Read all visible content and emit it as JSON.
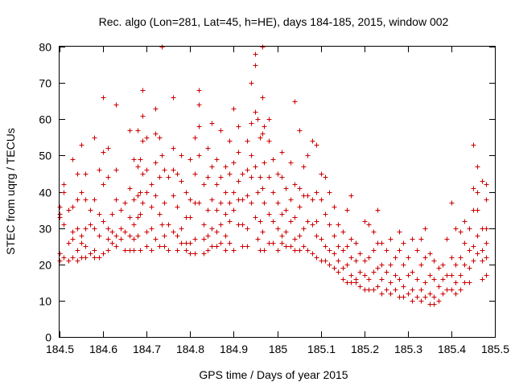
{
  "chart_data": {
    "type": "scatter",
    "title": "Rec. algo (Lon=281, Lat=45, h=HE), days 184-185, 2015, window 002",
    "xlabel": "GPS time / Days of year 2015",
    "ylabel": "STEC from uqrg / TECUs",
    "xlim": [
      184.5,
      185.5
    ],
    "ylim": [
      0,
      80
    ],
    "xticks": [
      "184.5",
      "184.6",
      "184.7",
      "184.8",
      "184.9",
      "185",
      "185.1",
      "185.2",
      "185.3",
      "185.4",
      "185.5"
    ],
    "yticks": [
      "0",
      "10",
      "20",
      "30",
      "40",
      "50",
      "60",
      "70",
      "80"
    ],
    "grid": false,
    "legend": "none",
    "marker": "plus",
    "series_color": "#cc0000",
    "points": [
      [
        184.5,
        36
      ],
      [
        184.5,
        34
      ],
      [
        184.5,
        33
      ],
      [
        184.5,
        23
      ],
      [
        184.5,
        21
      ],
      [
        184.51,
        42
      ],
      [
        184.51,
        40
      ],
      [
        184.51,
        31
      ],
      [
        184.51,
        22
      ],
      [
        184.52,
        35
      ],
      [
        184.52,
        26
      ],
      [
        184.52,
        21
      ],
      [
        184.53,
        49
      ],
      [
        184.53,
        36
      ],
      [
        184.53,
        29
      ],
      [
        184.53,
        27
      ],
      [
        184.53,
        22
      ],
      [
        184.54,
        45
      ],
      [
        184.54,
        38
      ],
      [
        184.54,
        30
      ],
      [
        184.54,
        24
      ],
      [
        184.54,
        21
      ],
      [
        184.55,
        53
      ],
      [
        184.55,
        40
      ],
      [
        184.55,
        28
      ],
      [
        184.55,
        26
      ],
      [
        184.55,
        22
      ],
      [
        184.56,
        45
      ],
      [
        184.56,
        38
      ],
      [
        184.56,
        30
      ],
      [
        184.56,
        25
      ],
      [
        184.56,
        22
      ],
      [
        184.57,
        35
      ],
      [
        184.57,
        31
      ],
      [
        184.57,
        23
      ],
      [
        184.58,
        55
      ],
      [
        184.58,
        38
      ],
      [
        184.58,
        30
      ],
      [
        184.58,
        24
      ],
      [
        184.58,
        22
      ],
      [
        184.59,
        46
      ],
      [
        184.59,
        34
      ],
      [
        184.59,
        28
      ],
      [
        184.59,
        22
      ],
      [
        184.6,
        66
      ],
      [
        184.6,
        51
      ],
      [
        184.6,
        42
      ],
      [
        184.6,
        32
      ],
      [
        184.6,
        23
      ],
      [
        184.61,
        52
      ],
      [
        184.61,
        44
      ],
      [
        184.61,
        30
      ],
      [
        184.61,
        27
      ],
      [
        184.61,
        24
      ],
      [
        184.62,
        34
      ],
      [
        184.62,
        29
      ],
      [
        184.62,
        26
      ],
      [
        184.63,
        64
      ],
      [
        184.63,
        46
      ],
      [
        184.63,
        38
      ],
      [
        184.63,
        28
      ],
      [
        184.63,
        25
      ],
      [
        184.64,
        35
      ],
      [
        184.64,
        30
      ],
      [
        184.64,
        27
      ],
      [
        184.65,
        37
      ],
      [
        184.65,
        29
      ],
      [
        184.65,
        24
      ],
      [
        184.66,
        57
      ],
      [
        184.66,
        41
      ],
      [
        184.66,
        33
      ],
      [
        184.66,
        28
      ],
      [
        184.66,
        24
      ],
      [
        184.67,
        49
      ],
      [
        184.67,
        38
      ],
      [
        184.67,
        31
      ],
      [
        184.67,
        27
      ],
      [
        184.67,
        24
      ],
      [
        184.68,
        57
      ],
      [
        184.68,
        47
      ],
      [
        184.68,
        39
      ],
      [
        184.68,
        33
      ],
      [
        184.68,
        28
      ],
      [
        184.685,
        49
      ],
      [
        184.685,
        40
      ],
      [
        184.685,
        34
      ],
      [
        184.685,
        24
      ],
      [
        184.69,
        68
      ],
      [
        184.69,
        61
      ],
      [
        184.69,
        54
      ],
      [
        184.69,
        45
      ],
      [
        184.69,
        37
      ],
      [
        184.7,
        55
      ],
      [
        184.7,
        46
      ],
      [
        184.7,
        40
      ],
      [
        184.7,
        29
      ],
      [
        184.7,
        25
      ],
      [
        184.71,
        42
      ],
      [
        184.71,
        36
      ],
      [
        184.71,
        30
      ],
      [
        184.71,
        24
      ],
      [
        184.72,
        63
      ],
      [
        184.72,
        56
      ],
      [
        184.72,
        48
      ],
      [
        184.72,
        39
      ],
      [
        184.72,
        27
      ],
      [
        184.73,
        55
      ],
      [
        184.73,
        44
      ],
      [
        184.73,
        34
      ],
      [
        184.73,
        25
      ],
      [
        184.735,
        80
      ],
      [
        184.735,
        50
      ],
      [
        184.735,
        31
      ],
      [
        184.74,
        46
      ],
      [
        184.74,
        37
      ],
      [
        184.74,
        28
      ],
      [
        184.74,
        25
      ],
      [
        184.75,
        44
      ],
      [
        184.75,
        31
      ],
      [
        184.75,
        24
      ],
      [
        184.76,
        66
      ],
      [
        184.76,
        52
      ],
      [
        184.76,
        46
      ],
      [
        184.76,
        39
      ],
      [
        184.76,
        29
      ],
      [
        184.77,
        45
      ],
      [
        184.77,
        36
      ],
      [
        184.77,
        28
      ],
      [
        184.77,
        24
      ],
      [
        184.78,
        50
      ],
      [
        184.78,
        43
      ],
      [
        184.78,
        30
      ],
      [
        184.78,
        26
      ],
      [
        184.79,
        40
      ],
      [
        184.79,
        33
      ],
      [
        184.79,
        26
      ],
      [
        184.79,
        24
      ],
      [
        184.8,
        49
      ],
      [
        184.8,
        38
      ],
      [
        184.8,
        33
      ],
      [
        184.8,
        26
      ],
      [
        184.8,
        23
      ],
      [
        184.81,
        55
      ],
      [
        184.81,
        45
      ],
      [
        184.81,
        37
      ],
      [
        184.81,
        27
      ],
      [
        184.81,
        23
      ],
      [
        184.82,
        68
      ],
      [
        184.82,
        64
      ],
      [
        184.82,
        58
      ],
      [
        184.82,
        50
      ],
      [
        184.82,
        37
      ],
      [
        184.83,
        42
      ],
      [
        184.83,
        31
      ],
      [
        184.83,
        27
      ],
      [
        184.83,
        23
      ],
      [
        184.84,
        52
      ],
      [
        184.84,
        44
      ],
      [
        184.84,
        35
      ],
      [
        184.84,
        28
      ],
      [
        184.84,
        24
      ],
      [
        184.85,
        59
      ],
      [
        184.85,
        47
      ],
      [
        184.85,
        38
      ],
      [
        184.85,
        30
      ],
      [
        184.85,
        25
      ],
      [
        184.86,
        49
      ],
      [
        184.86,
        42
      ],
      [
        184.86,
        35
      ],
      [
        184.86,
        29
      ],
      [
        184.86,
        25
      ],
      [
        184.87,
        57
      ],
      [
        184.87,
        44
      ],
      [
        184.87,
        37
      ],
      [
        184.87,
        31
      ],
      [
        184.87,
        26
      ],
      [
        184.88,
        47
      ],
      [
        184.88,
        40
      ],
      [
        184.88,
        34
      ],
      [
        184.88,
        28
      ],
      [
        184.88,
        24
      ],
      [
        184.89,
        54
      ],
      [
        184.89,
        45
      ],
      [
        184.89,
        37
      ],
      [
        184.89,
        32
      ],
      [
        184.89,
        26
      ],
      [
        184.9,
        63
      ],
      [
        184.9,
        48
      ],
      [
        184.9,
        40
      ],
      [
        184.9,
        35
      ],
      [
        184.9,
        24
      ],
      [
        184.91,
        58
      ],
      [
        184.91,
        51
      ],
      [
        184.91,
        43
      ],
      [
        184.91,
        38
      ],
      [
        184.91,
        31
      ],
      [
        184.92,
        45
      ],
      [
        184.92,
        38
      ],
      [
        184.92,
        31
      ],
      [
        184.92,
        25
      ],
      [
        184.93,
        54
      ],
      [
        184.93,
        46
      ],
      [
        184.93,
        39
      ],
      [
        184.93,
        30
      ],
      [
        184.93,
        25
      ],
      [
        184.94,
        70
      ],
      [
        184.94,
        59
      ],
      [
        184.94,
        50
      ],
      [
        184.94,
        44
      ],
      [
        184.94,
        37
      ],
      [
        184.95,
        78
      ],
      [
        184.95,
        75
      ],
      [
        184.95,
        62
      ],
      [
        184.95,
        47
      ],
      [
        184.95,
        33
      ],
      [
        184.955,
        60
      ],
      [
        184.955,
        40
      ],
      [
        184.955,
        27
      ],
      [
        184.96,
        55
      ],
      [
        184.96,
        44
      ],
      [
        184.96,
        32
      ],
      [
        184.96,
        24
      ],
      [
        184.965,
        80
      ],
      [
        184.965,
        66
      ],
      [
        184.965,
        56
      ],
      [
        184.965,
        41
      ],
      [
        184.965,
        29
      ],
      [
        184.97,
        58
      ],
      [
        184.97,
        48
      ],
      [
        184.97,
        37
      ],
      [
        184.97,
        24
      ],
      [
        184.98,
        60
      ],
      [
        184.98,
        54
      ],
      [
        184.98,
        44
      ],
      [
        184.98,
        34
      ],
      [
        184.98,
        26
      ],
      [
        184.99,
        49
      ],
      [
        184.99,
        40
      ],
      [
        184.99,
        32
      ],
      [
        184.99,
        26
      ],
      [
        185.0,
        45
      ],
      [
        185.0,
        37
      ],
      [
        185.0,
        30
      ],
      [
        185.0,
        24
      ],
      [
        185.01,
        51
      ],
      [
        185.01,
        44
      ],
      [
        185.01,
        34
      ],
      [
        185.01,
        28
      ],
      [
        185.01,
        26
      ],
      [
        185.02,
        41
      ],
      [
        185.02,
        35
      ],
      [
        185.02,
        29
      ],
      [
        185.02,
        25
      ],
      [
        185.03,
        48
      ],
      [
        185.03,
        38
      ],
      [
        185.03,
        32
      ],
      [
        185.03,
        25
      ],
      [
        185.04,
        65
      ],
      [
        185.04,
        42
      ],
      [
        185.04,
        33
      ],
      [
        185.04,
        27
      ],
      [
        185.04,
        24
      ],
      [
        185.05,
        57
      ],
      [
        185.05,
        41
      ],
      [
        185.05,
        36
      ],
      [
        185.05,
        28
      ],
      [
        185.05,
        24
      ],
      [
        185.06,
        47
      ],
      [
        185.06,
        39
      ],
      [
        185.06,
        30
      ],
      [
        185.06,
        25
      ],
      [
        185.07,
        50
      ],
      [
        185.07,
        39
      ],
      [
        185.07,
        32
      ],
      [
        185.07,
        24
      ],
      [
        185.08,
        54
      ],
      [
        185.08,
        38
      ],
      [
        185.08,
        31
      ],
      [
        185.08,
        23
      ],
      [
        185.09,
        53
      ],
      [
        185.09,
        40
      ],
      [
        185.09,
        32
      ],
      [
        185.09,
        28
      ],
      [
        185.09,
        22
      ],
      [
        185.1,
        45
      ],
      [
        185.1,
        38
      ],
      [
        185.1,
        27
      ],
      [
        185.1,
        21
      ],
      [
        185.11,
        44
      ],
      [
        185.11,
        34
      ],
      [
        185.11,
        25
      ],
      [
        185.11,
        21
      ],
      [
        185.12,
        40
      ],
      [
        185.12,
        31
      ],
      [
        185.12,
        24
      ],
      [
        185.12,
        20
      ],
      [
        185.13,
        36
      ],
      [
        185.13,
        28
      ],
      [
        185.13,
        23
      ],
      [
        185.13,
        19
      ],
      [
        185.14,
        31
      ],
      [
        185.14,
        25
      ],
      [
        185.14,
        21
      ],
      [
        185.14,
        18
      ],
      [
        185.15,
        29
      ],
      [
        185.15,
        24
      ],
      [
        185.15,
        19
      ],
      [
        185.15,
        16
      ],
      [
        185.16,
        35
      ],
      [
        185.16,
        25
      ],
      [
        185.16,
        20
      ],
      [
        185.16,
        15
      ],
      [
        185.17,
        39
      ],
      [
        185.17,
        27
      ],
      [
        185.17,
        22
      ],
      [
        185.17,
        17
      ],
      [
        185.17,
        15
      ],
      [
        185.18,
        26
      ],
      [
        185.18,
        21
      ],
      [
        185.18,
        16
      ],
      [
        185.18,
        15
      ],
      [
        185.19,
        23
      ],
      [
        185.19,
        18
      ],
      [
        185.19,
        14
      ],
      [
        185.2,
        32
      ],
      [
        185.2,
        21
      ],
      [
        185.2,
        17
      ],
      [
        185.2,
        13
      ],
      [
        185.21,
        31
      ],
      [
        185.21,
        22
      ],
      [
        185.21,
        16
      ],
      [
        185.21,
        13
      ],
      [
        185.22,
        29
      ],
      [
        185.22,
        24
      ],
      [
        185.22,
        18
      ],
      [
        185.22,
        13
      ],
      [
        185.23,
        35
      ],
      [
        185.23,
        26
      ],
      [
        185.23,
        19
      ],
      [
        185.23,
        14
      ],
      [
        185.24,
        26
      ],
      [
        185.24,
        20
      ],
      [
        185.24,
        16
      ],
      [
        185.24,
        12
      ],
      [
        185.25,
        24
      ],
      [
        185.25,
        18
      ],
      [
        185.25,
        13
      ],
      [
        185.26,
        27
      ],
      [
        185.26,
        20
      ],
      [
        185.26,
        15
      ],
      [
        185.26,
        12
      ],
      [
        185.27,
        22
      ],
      [
        185.27,
        17
      ],
      [
        185.27,
        13
      ],
      [
        185.28,
        29
      ],
      [
        185.28,
        24
      ],
      [
        185.28,
        16
      ],
      [
        185.28,
        11
      ],
      [
        185.29,
        26
      ],
      [
        185.29,
        20
      ],
      [
        185.29,
        14
      ],
      [
        185.29,
        11
      ],
      [
        185.3,
        22
      ],
      [
        185.3,
        17
      ],
      [
        185.3,
        12
      ],
      [
        185.31,
        27
      ],
      [
        185.31,
        18
      ],
      [
        185.31,
        13
      ],
      [
        185.31,
        10
      ],
      [
        185.32,
        24
      ],
      [
        185.32,
        16
      ],
      [
        185.32,
        11
      ],
      [
        185.33,
        27
      ],
      [
        185.33,
        20
      ],
      [
        185.33,
        13
      ],
      [
        185.33,
        10
      ],
      [
        185.34,
        30
      ],
      [
        185.34,
        22
      ],
      [
        185.34,
        15
      ],
      [
        185.34,
        11
      ],
      [
        185.35,
        23
      ],
      [
        185.35,
        17
      ],
      [
        185.35,
        12
      ],
      [
        185.35,
        9
      ],
      [
        185.36,
        21
      ],
      [
        185.36,
        16
      ],
      [
        185.36,
        11
      ],
      [
        185.36,
        9
      ],
      [
        185.37,
        19
      ],
      [
        185.37,
        14
      ],
      [
        185.37,
        10
      ],
      [
        185.38,
        20
      ],
      [
        185.38,
        16
      ],
      [
        185.38,
        12
      ],
      [
        185.39,
        27
      ],
      [
        185.39,
        17
      ],
      [
        185.39,
        13
      ],
      [
        185.4,
        37
      ],
      [
        185.4,
        22
      ],
      [
        185.4,
        17
      ],
      [
        185.4,
        13
      ],
      [
        185.41,
        30
      ],
      [
        185.41,
        20
      ],
      [
        185.41,
        15
      ],
      [
        185.41,
        12
      ],
      [
        185.42,
        29
      ],
      [
        185.42,
        22
      ],
      [
        185.42,
        17
      ],
      [
        185.42,
        13
      ],
      [
        185.43,
        32
      ],
      [
        185.43,
        26
      ],
      [
        185.43,
        20
      ],
      [
        185.43,
        15
      ],
      [
        185.44,
        30
      ],
      [
        185.44,
        24
      ],
      [
        185.44,
        19
      ],
      [
        185.44,
        15
      ],
      [
        185.45,
        53
      ],
      [
        185.45,
        41
      ],
      [
        185.45,
        35
      ],
      [
        185.45,
        25
      ],
      [
        185.45,
        21
      ],
      [
        185.46,
        47
      ],
      [
        185.46,
        40
      ],
      [
        185.46,
        35
      ],
      [
        185.46,
        28
      ],
      [
        185.46,
        23
      ],
      [
        185.47,
        43
      ],
      [
        185.47,
        30
      ],
      [
        185.47,
        24
      ],
      [
        185.47,
        21
      ],
      [
        185.47,
        16
      ],
      [
        185.48,
        42
      ],
      [
        185.48,
        38
      ],
      [
        185.48,
        30
      ],
      [
        185.48,
        26
      ],
      [
        185.48,
        22
      ],
      [
        185.48,
        17
      ]
    ]
  }
}
